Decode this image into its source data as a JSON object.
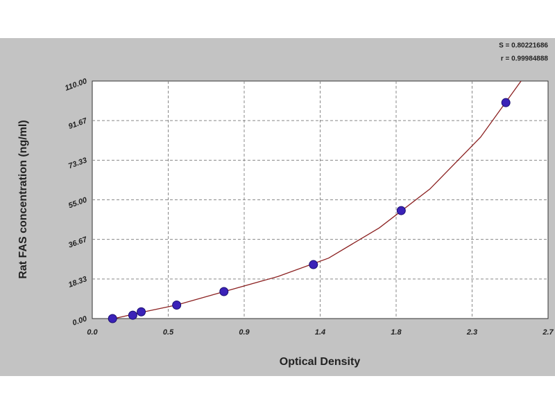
{
  "chart_data": {
    "type": "scatter",
    "annotations": [
      "S = 0.80221686",
      "r = 0.99984888"
    ],
    "x_label": "Optical Density",
    "y_label": "Rat FAS concentration (ng/ml)",
    "xlim": [
      0,
      2.7
    ],
    "ylim": [
      0,
      110
    ],
    "xticks": [
      {
        "value": 0,
        "label": "0.0"
      },
      {
        "value": 0.45,
        "label": "0.5"
      },
      0.9,
      {
        "value": 1.35,
        "label": "1.4"
      },
      1.8,
      {
        "value": 2.25,
        "label": "2.3"
      },
      2.7
    ],
    "yticks": [
      {
        "value": 0,
        "label": "0.00"
      },
      18.33,
      36.67,
      {
        "value": 55,
        "label": "55.00"
      },
      73.33,
      91.67,
      {
        "value": 110,
        "label": "110.00"
      }
    ],
    "grid": true,
    "series": [
      {
        "kind": "points",
        "color": "#3b22b8",
        "x": [
          0.12,
          0.24,
          0.29,
          0.5,
          0.78,
          1.31,
          1.83,
          2.45
        ],
        "values": [
          0,
          1.56,
          3.125,
          6.25,
          12.5,
          25,
          50,
          100
        ]
      },
      {
        "kind": "line",
        "color": "#8b2020",
        "x": [
          0.1,
          0.3,
          0.5,
          0.8,
          1.1,
          1.4,
          1.7,
          2.0,
          2.3,
          2.54
        ],
        "values": [
          -0.5,
          3,
          6.3,
          12.9,
          19.5,
          28,
          42,
          60,
          84,
          110
        ]
      }
    ]
  }
}
